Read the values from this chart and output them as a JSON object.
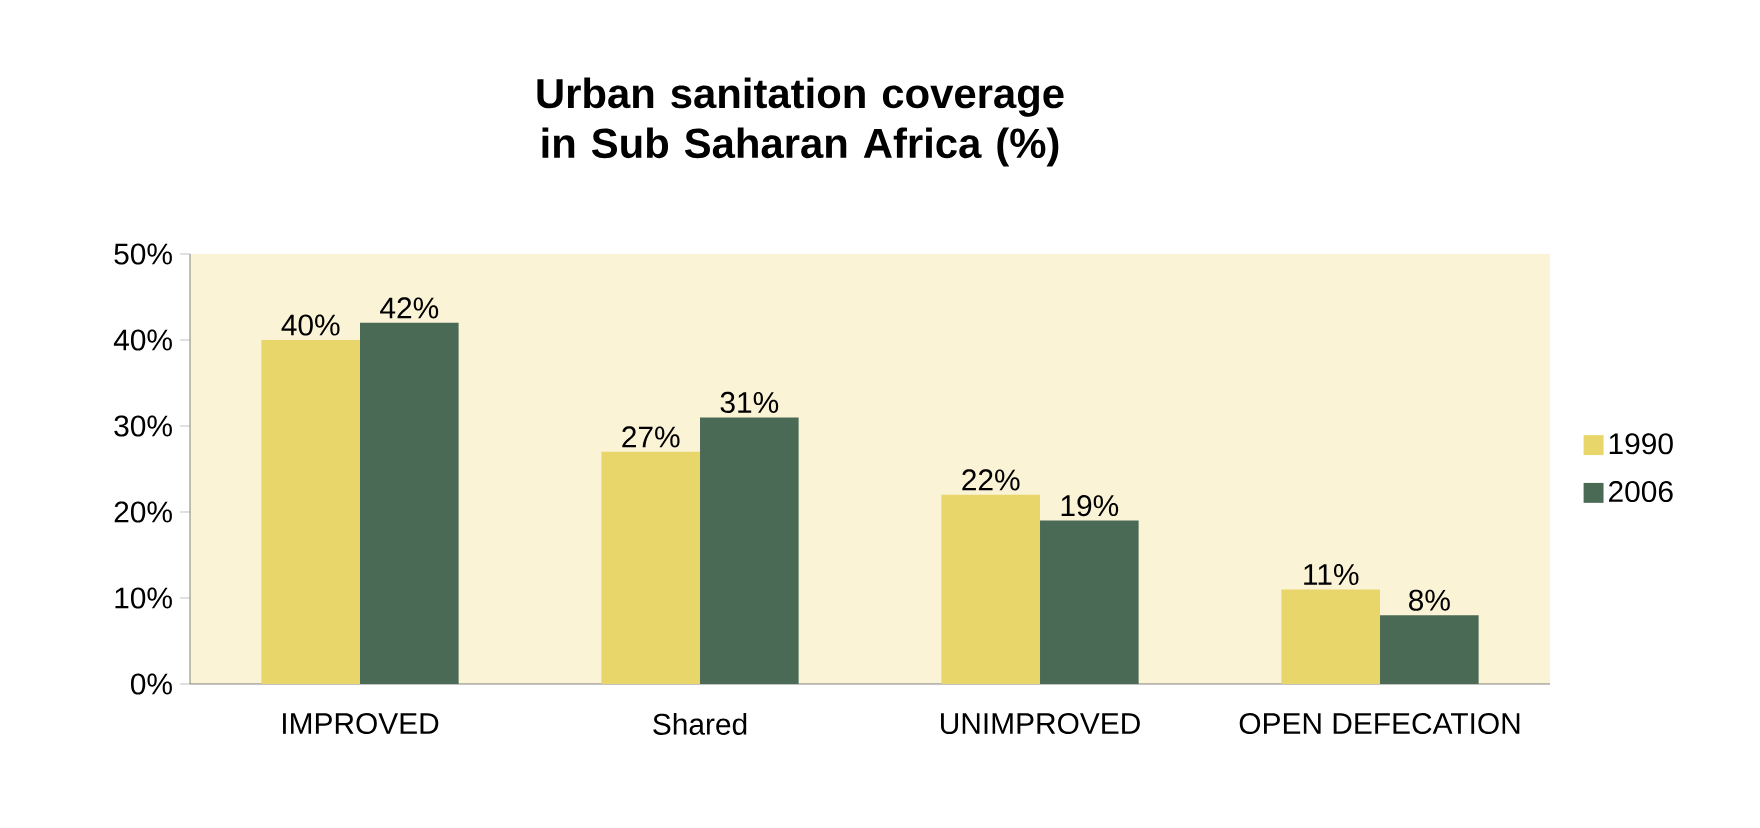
{
  "chart_data": {
    "type": "bar",
    "title": "Urban sanitation coverage in Sub Saharan Africa (%)",
    "categories": [
      "IMPROVED",
      "Shared",
      "UNIMPROVED",
      "OPEN DEFECATION"
    ],
    "series": [
      {
        "name": "1990",
        "color": "#e8d66a",
        "values": [
          40,
          27,
          22,
          11
        ],
        "value_labels": [
          "40%",
          "27%",
          "22%",
          "11%"
        ]
      },
      {
        "name": "2006",
        "color": "#4a6a55",
        "values": [
          42,
          31,
          19,
          8
        ],
        "value_labels": [
          "42%",
          "31%",
          "19%",
          "8%"
        ]
      }
    ],
    "ylim": [
      0,
      50
    ],
    "yticks": [
      {
        "value": 0,
        "label": "0%"
      },
      {
        "value": 10,
        "label": "10%"
      },
      {
        "value": 20,
        "label": "20%"
      },
      {
        "value": 30,
        "label": "30%"
      },
      {
        "value": 40,
        "label": "40%"
      },
      {
        "value": 50,
        "label": "50%"
      }
    ],
    "legend": "right"
  }
}
